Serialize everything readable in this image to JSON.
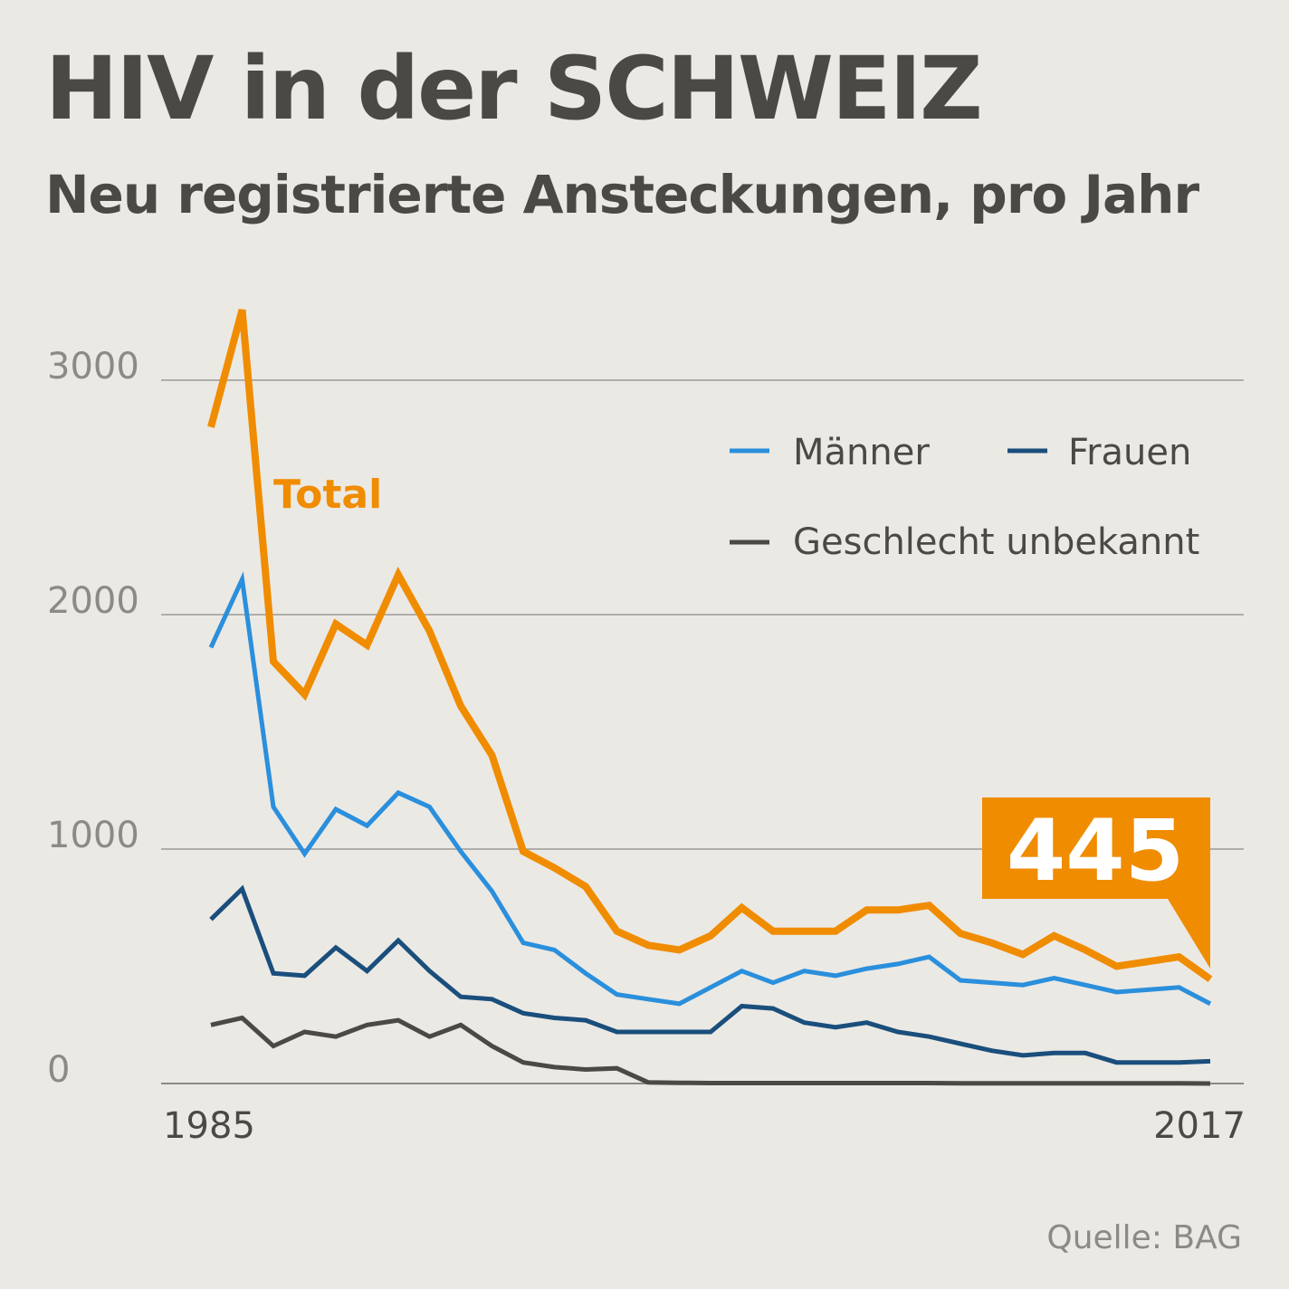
{
  "title": "HIV in der SCHWEIZ",
  "subtitle": "Neu registrierte Ansteckungen, pro Jahr",
  "source": "Quelle: BAG",
  "colors": {
    "background": "#ebe9e4",
    "grid": "#8c8a86",
    "text": "#4a4946",
    "total": "#f08c00",
    "maenner": "#2a8fdc",
    "frauen": "#1a4e7c",
    "unbekannt": "#4a4946"
  },
  "chart_data": {
    "type": "line",
    "title": "",
    "xlabel": "",
    "ylabel": "",
    "ylim": [
      0,
      3000
    ],
    "xlim": [
      1985,
      2017
    ],
    "y_ticks": [
      0,
      1000,
      2000,
      3000
    ],
    "y_tick_labels": [
      "0",
      "1000",
      "2000",
      "3000"
    ],
    "x_tick_labels": [
      "1985",
      "2017"
    ],
    "grid": true,
    "legend_position": "top-right",
    "x": [
      1985,
      1986,
      1987,
      1988,
      1989,
      1990,
      1991,
      1992,
      1993,
      1994,
      1995,
      1996,
      1997,
      1998,
      1999,
      2000,
      2001,
      2002,
      2003,
      2004,
      2005,
      2006,
      2007,
      2008,
      2009,
      2010,
      2011,
      2012,
      2013,
      2014,
      2015,
      2016,
      2017
    ],
    "series": [
      {
        "name": "Total",
        "color": "#f08c00",
        "values": [
          2800,
          3300,
          1800,
          1660,
          1960,
          1870,
          2170,
          1930,
          1610,
          1400,
          990,
          920,
          840,
          650,
          590,
          570,
          630,
          750,
          650,
          650,
          650,
          740,
          740,
          760,
          640,
          600,
          550,
          630,
          570,
          500,
          520,
          540,
          445
        ]
      },
      {
        "name": "Männer",
        "color": "#2a8fdc",
        "values": [
          1860,
          2150,
          1180,
          980,
          1170,
          1100,
          1240,
          1180,
          990,
          820,
          600,
          570,
          470,
          380,
          360,
          340,
          410,
          480,
          430,
          480,
          460,
          490,
          510,
          540,
          440,
          430,
          420,
          450,
          420,
          390,
          400,
          410,
          340
        ]
      },
      {
        "name": "Frauen",
        "color": "#1a4e7c",
        "values": [
          700,
          830,
          470,
          460,
          580,
          480,
          610,
          480,
          370,
          360,
          300,
          280,
          270,
          220,
          220,
          220,
          220,
          330,
          320,
          260,
          240,
          260,
          220,
          200,
          170,
          140,
          120,
          130,
          130,
          90,
          90,
          90,
          95
        ]
      },
      {
        "name": "Geschlecht unbekannt",
        "color": "#4a4946",
        "values": [
          250,
          280,
          160,
          220,
          200,
          250,
          270,
          200,
          250,
          160,
          90,
          70,
          60,
          65,
          5,
          3,
          2,
          2,
          2,
          2,
          2,
          2,
          2,
          2,
          1,
          1,
          1,
          1,
          1,
          1,
          1,
          1,
          0
        ]
      }
    ],
    "annotations": {
      "total_label": "Total",
      "last_value": "445"
    }
  }
}
